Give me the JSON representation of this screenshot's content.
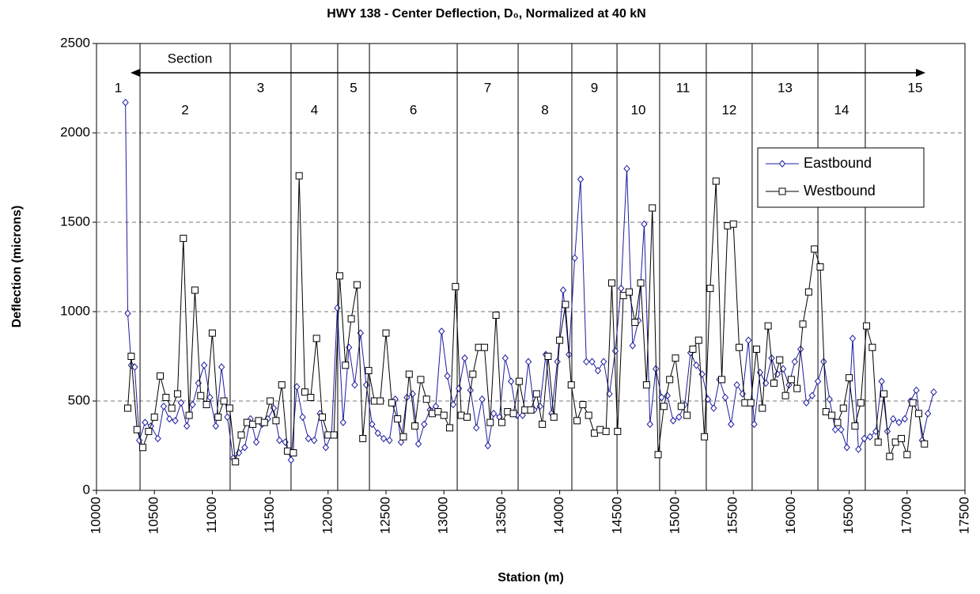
{
  "chart_data": {
    "type": "line",
    "title": "HWY 138 - Center Deflection, D₀, Normalized at 40 kN",
    "x_label": "Station (m)",
    "y_label": "Deflection (microns)",
    "xlim": [
      10000,
      17500
    ],
    "xticks": [
      10000,
      10500,
      11000,
      11500,
      12000,
      12500,
      13000,
      13500,
      14000,
      14500,
      15000,
      15500,
      16000,
      16500,
      17000,
      17500
    ],
    "ylim": [
      0,
      2500
    ],
    "yticks": [
      0,
      500,
      1000,
      1500,
      2000,
      2500
    ],
    "grid": true,
    "legend": "upper right",
    "sections": {
      "label": "Section",
      "boundaries": [
        10376,
        11154,
        11680,
        12083,
        12357,
        13115,
        13641,
        14105,
        14495,
        14863,
        15266,
        15662,
        16230,
        16639
      ],
      "labels": [
        "1",
        "2",
        "3",
        "4",
        "5",
        "6",
        "7",
        "8",
        "9",
        "10",
        "11",
        "12",
        "13",
        "14",
        "15"
      ]
    },
    "series": [
      {
        "name": "Eastbound",
        "color": "#1c1ca0",
        "marker": "diamond",
        "x": [
          10250,
          10270,
          10300,
          10330,
          10370,
          10420,
          10470,
          10530,
          10580,
          10630,
          10680,
          10730,
          10780,
          10830,
          10880,
          10930,
          10980,
          11030,
          11080,
          11130,
          11180,
          11230,
          11280,
          11330,
          11380,
          11430,
          11480,
          11530,
          11580,
          11630,
          11680,
          11730,
          11780,
          11830,
          11880,
          11930,
          11980,
          12030,
          12080,
          12130,
          12180,
          12230,
          12280,
          12330,
          12380,
          12430,
          12480,
          12530,
          12580,
          12630,
          12680,
          12730,
          12780,
          12830,
          12880,
          12930,
          12980,
          13030,
          13080,
          13130,
          13180,
          13230,
          13280,
          13330,
          13380,
          13430,
          13480,
          13530,
          13580,
          13630,
          13680,
          13730,
          13780,
          13830,
          13880,
          13930,
          13980,
          14030,
          14080,
          14130,
          14180,
          14230,
          14280,
          14330,
          14380,
          14430,
          14480,
          14530,
          14580,
          14630,
          14680,
          14730,
          14780,
          14830,
          14880,
          14930,
          14980,
          15030,
          15080,
          15130,
          15180,
          15230,
          15280,
          15330,
          15380,
          15430,
          15480,
          15530,
          15580,
          15630,
          15680,
          15730,
          15780,
          15830,
          15880,
          15930,
          15980,
          16030,
          16080,
          16130,
          16180,
          16230,
          16280,
          16330,
          16380,
          16430,
          16480,
          16530,
          16580,
          16630,
          16680,
          16730,
          16780,
          16830,
          16880,
          16930,
          16980,
          17030,
          17080,
          17130,
          17180,
          17230
        ],
        "values": [
          2170,
          990,
          700,
          690,
          280,
          380,
          360,
          290,
          470,
          400,
          390,
          490,
          360,
          480,
          600,
          700,
          520,
          360,
          690,
          410,
          180,
          210,
          240,
          400,
          270,
          370,
          400,
          460,
          280,
          270,
          170,
          580,
          410,
          290,
          280,
          430,
          240,
          310,
          1020,
          380,
          800,
          590,
          880,
          590,
          370,
          320,
          290,
          280,
          510,
          270,
          520,
          540,
          260,
          370,
          450,
          470,
          890,
          640,
          480,
          570,
          740,
          560,
          350,
          510,
          250,
          430,
          410,
          740,
          610,
          420,
          420,
          720,
          450,
          470,
          760,
          430,
          720,
          1120,
          760,
          1300,
          1740,
          720,
          720,
          670,
          720,
          540,
          780,
          1130,
          1800,
          810,
          950,
          1490,
          370,
          680,
          520,
          530,
          390,
          410,
          480,
          770,
          700,
          650,
          510,
          460,
          620,
          520,
          370,
          590,
          540,
          840,
          370,
          660,
          600,
          740,
          650,
          680,
          590,
          720,
          790,
          490,
          530,
          610,
          720,
          510,
          340,
          340,
          240,
          850,
          230,
          290,
          300,
          330,
          610,
          330,
          400,
          380,
          400,
          500,
          560,
          280,
          430,
          550
        ]
      },
      {
        "name": "Westbound",
        "color": "#000000",
        "marker": "square",
        "x": [
          10270,
          10300,
          10350,
          10400,
          10450,
          10500,
          10550,
          10600,
          10650,
          10700,
          10750,
          10800,
          10850,
          10900,
          10950,
          11000,
          11050,
          11100,
          11150,
          11200,
          11250,
          11300,
          11350,
          11400,
          11450,
          11500,
          11550,
          11600,
          11650,
          11700,
          11750,
          11800,
          11850,
          11900,
          11950,
          12000,
          12050,
          12100,
          12150,
          12200,
          12250,
          12300,
          12350,
          12400,
          12450,
          12500,
          12550,
          12600,
          12650,
          12700,
          12750,
          12800,
          12850,
          12900,
          12950,
          13000,
          13050,
          13100,
          13150,
          13200,
          13250,
          13300,
          13350,
          13400,
          13450,
          13500,
          13550,
          13600,
          13650,
          13700,
          13750,
          13800,
          13850,
          13900,
          13950,
          14000,
          14050,
          14100,
          14150,
          14200,
          14250,
          14300,
          14350,
          14400,
          14450,
          14500,
          14550,
          14600,
          14650,
          14700,
          14750,
          14800,
          14850,
          14900,
          14950,
          15000,
          15050,
          15100,
          15150,
          15200,
          15250,
          15300,
          15350,
          15400,
          15450,
          15500,
          15550,
          15600,
          15650,
          15700,
          15750,
          15800,
          15850,
          15900,
          15950,
          16000,
          16050,
          16100,
          16150,
          16200,
          16250,
          16300,
          16350,
          16400,
          16450,
          16500,
          16550,
          16600,
          16650,
          16700,
          16750,
          16800,
          16850,
          16900,
          16950,
          17000,
          17050,
          17100,
          17150
        ],
        "values": [
          460,
          750,
          340,
          240,
          330,
          410,
          640,
          520,
          460,
          540,
          1410,
          420,
          1120,
          530,
          480,
          880,
          410,
          500,
          460,
          160,
          310,
          380,
          370,
          390,
          380,
          500,
          390,
          590,
          220,
          210,
          1760,
          550,
          520,
          850,
          410,
          310,
          310,
          1200,
          700,
          960,
          1150,
          290,
          670,
          500,
          500,
          880,
          490,
          400,
          300,
          650,
          360,
          620,
          510,
          430,
          440,
          420,
          350,
          1140,
          420,
          410,
          650,
          800,
          800,
          380,
          980,
          380,
          440,
          430,
          610,
          450,
          450,
          540,
          370,
          750,
          410,
          840,
          1040,
          590,
          390,
          480,
          420,
          320,
          340,
          330,
          1160,
          330,
          1090,
          1110,
          940,
          1160,
          590,
          1580,
          200,
          470,
          620,
          740,
          470,
          420,
          790,
          840,
          300,
          1130,
          1730,
          620,
          1480,
          1490,
          800,
          490,
          490,
          790,
          460,
          920,
          600,
          730,
          530,
          620,
          570,
          930,
          1110,
          1350,
          1250,
          440,
          420,
          380,
          460,
          630,
          360,
          490,
          920,
          800,
          270,
          540,
          190,
          270,
          290,
          200,
          490,
          430,
          260
        ]
      }
    ]
  }
}
